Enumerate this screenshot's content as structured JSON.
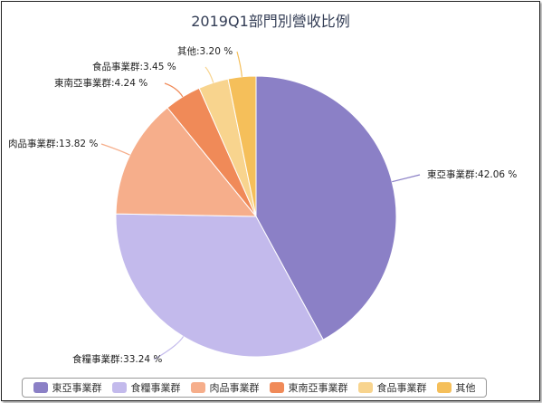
{
  "chart_data": {
    "type": "pie",
    "title": "2019Q1部門別營收比例",
    "slices": [
      {
        "name": "東亞事業群",
        "value": 42.06,
        "label": "東亞事業群:42.06 %",
        "color": "#8b80c6"
      },
      {
        "name": "食糧事業群",
        "value": 33.24,
        "label": "食糧事業群:33.24 %",
        "color": "#c3baec"
      },
      {
        "name": "肉品事業群",
        "value": 13.82,
        "label": "肉品事業群:13.82 %",
        "color": "#f6ae8b"
      },
      {
        "name": "東南亞事業群",
        "value": 4.24,
        "label": "東南亞事業群:4.24 %",
        "color": "#f08a58"
      },
      {
        "name": "食品事業群",
        "value": 3.45,
        "label": "食品事業群:3.45 %",
        "color": "#f8d48e"
      },
      {
        "name": "其他",
        "value": 3.2,
        "label": "其他:3.20 %",
        "color": "#f5bf5a"
      }
    ],
    "legend_position": "bottom"
  }
}
